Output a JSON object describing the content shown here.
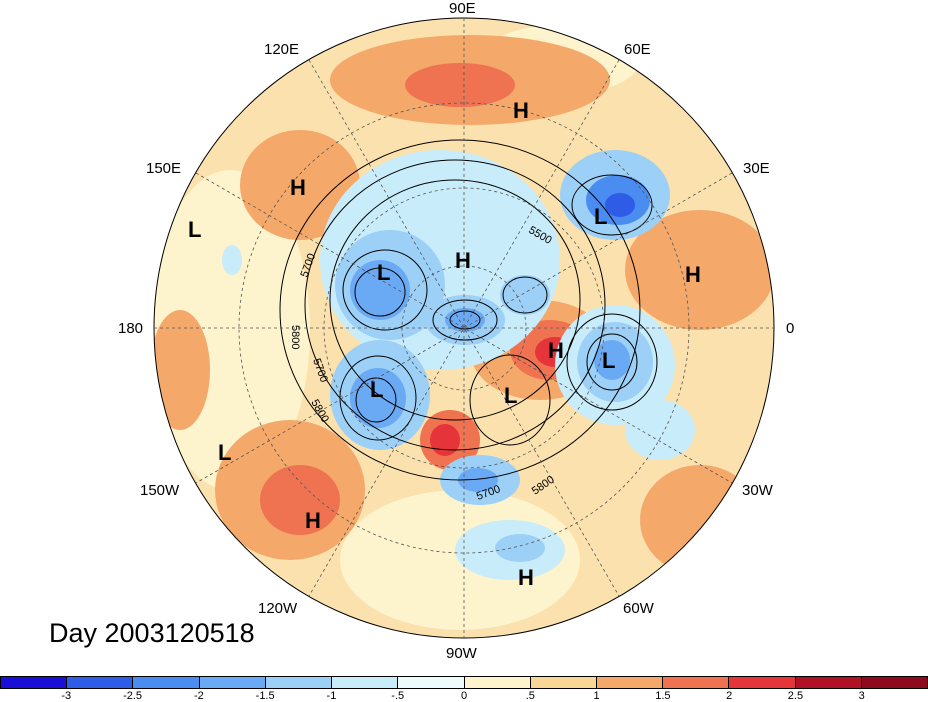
{
  "title": "Day 2003120518",
  "map": {
    "projection": "north-polar-stereographic",
    "lon_labels": [
      {
        "text": "90E"
      },
      {
        "text": "60E"
      },
      {
        "text": "30E"
      },
      {
        "text": "0"
      },
      {
        "text": "30W"
      },
      {
        "text": "60W"
      },
      {
        "text": "90W"
      },
      {
        "text": "120W"
      },
      {
        "text": "150W"
      },
      {
        "text": "180"
      },
      {
        "text": "150E"
      },
      {
        "text": "120E"
      }
    ],
    "pressure_centers": [
      {
        "type": "H",
        "region": "northern Siberia"
      },
      {
        "type": "H",
        "region": "north Pacific / Kamchatka"
      },
      {
        "type": "L",
        "region": "western Pacific"
      },
      {
        "type": "L",
        "region": "Alaska"
      },
      {
        "type": "H",
        "region": "Arctic (Siberian side)"
      },
      {
        "type": "L",
        "region": "Gulf of Alaska"
      },
      {
        "type": "L",
        "region": "Hudson Bay"
      },
      {
        "type": "H",
        "region": "Greenland"
      },
      {
        "type": "L",
        "region": "northwestern Atlantic"
      },
      {
        "type": "L",
        "region": "Scandinavia / western Russia"
      },
      {
        "type": "H",
        "region": "eastern Europe"
      },
      {
        "type": "L",
        "region": "central Pacific"
      },
      {
        "type": "H",
        "region": "eastern Pacific"
      },
      {
        "type": "H",
        "region": "Caribbean"
      }
    ],
    "contour_labels": [
      "5500",
      "5700",
      "5800",
      "5700",
      "5800",
      "5700",
      "5800"
    ]
  },
  "colorbar": {
    "ticks": [
      "-3",
      "-2.5",
      "-2",
      "-1.5",
      "-1",
      "-.5",
      "0",
      ".5",
      "1",
      "1.5",
      "2",
      "2.5",
      "3"
    ],
    "colors": [
      "#1a0fd6",
      "#2e5ce6",
      "#4a8cf0",
      "#6aaaf5",
      "#9dd0f7",
      "#c8ecfa",
      "#eefbfd",
      "#fdf3cc",
      "#f8d695",
      "#f4a86a",
      "#ef7350",
      "#e6343b",
      "#b01124",
      "#8f0a1e"
    ]
  }
}
